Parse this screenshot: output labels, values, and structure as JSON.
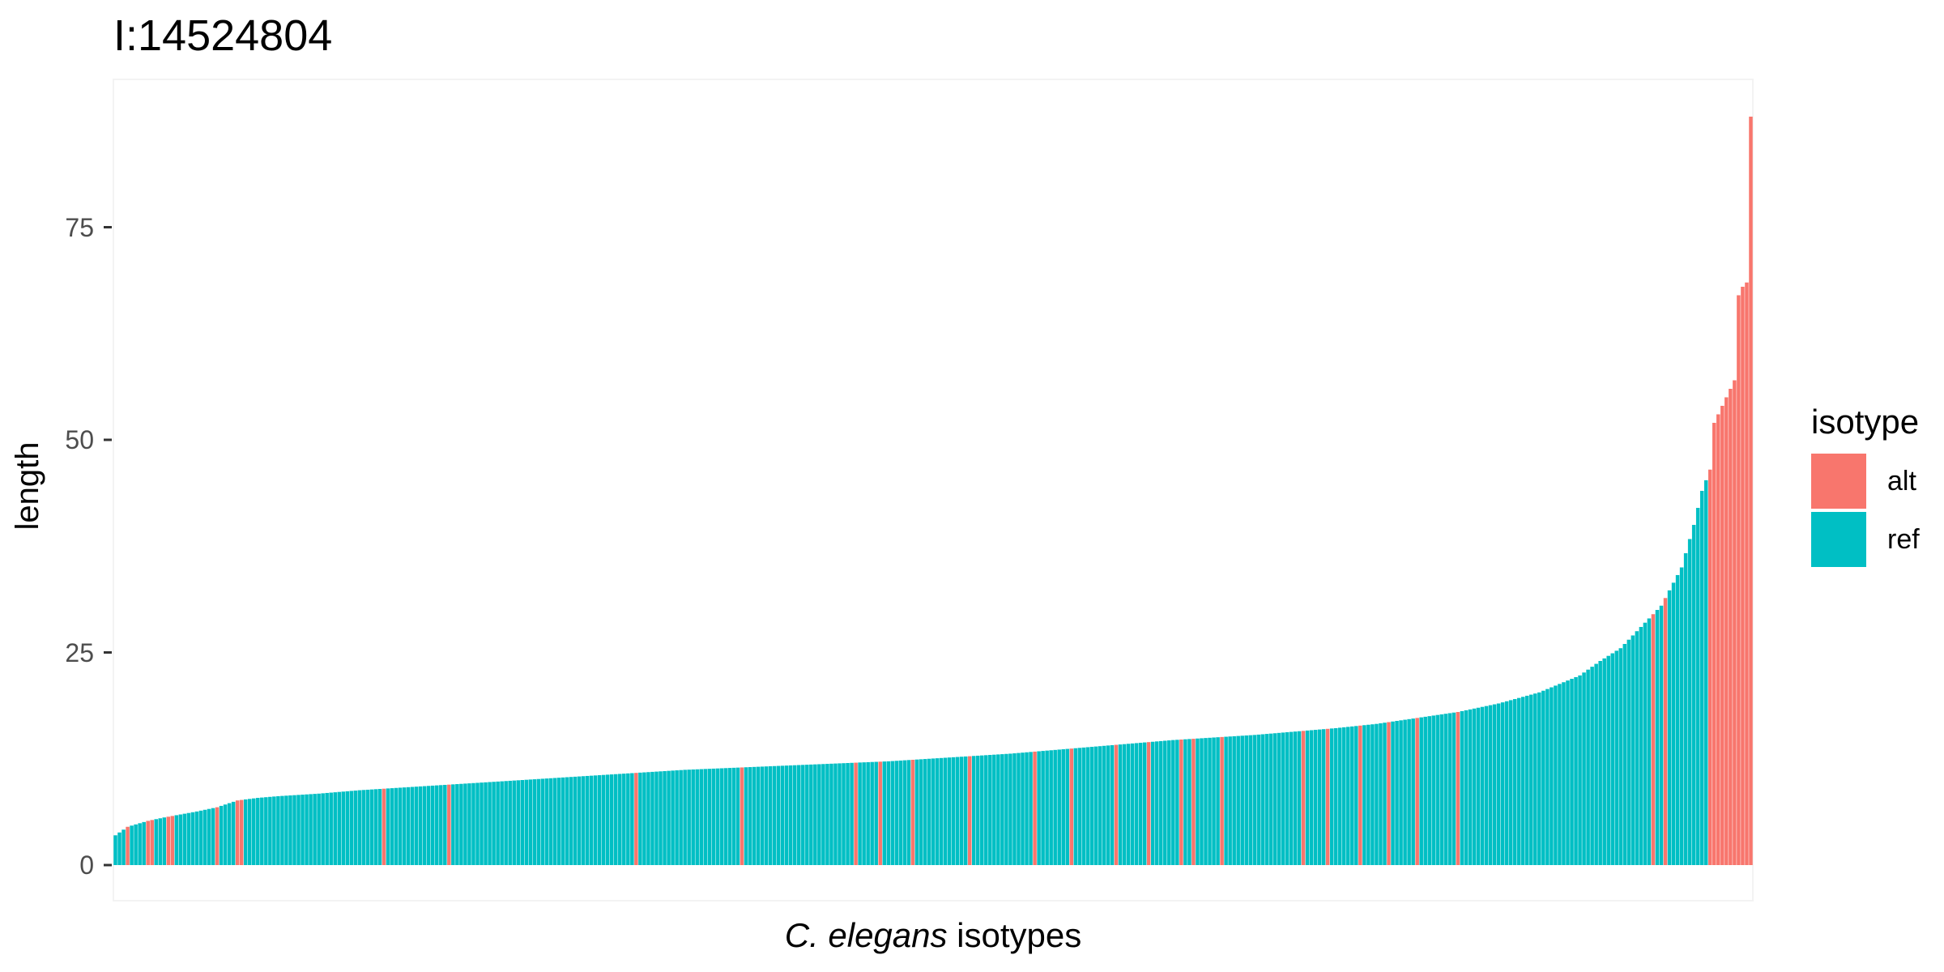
{
  "chart_data": {
    "type": "bar",
    "title": "I:14524804",
    "xlabel_italic": "C. elegans",
    "xlabel_rest": " isotypes",
    "ylabel": "length",
    "ylim": [
      0,
      90
    ],
    "yticks": [
      0,
      25,
      50,
      75
    ],
    "grid": false,
    "legend": {
      "title": "isotype",
      "position": "right",
      "entries": [
        {
          "label": "alt",
          "color": "#F8766D"
        },
        {
          "label": "ref",
          "color": "#00BFC4"
        }
      ]
    },
    "bar_count": 403,
    "profile": [
      [
        0,
        3.5
      ],
      [
        3,
        4.5
      ],
      [
        8,
        5.2
      ],
      [
        12,
        5.6
      ],
      [
        20,
        6.3
      ],
      [
        25,
        6.8
      ],
      [
        30,
        7.6
      ],
      [
        35,
        7.9
      ],
      [
        40,
        8.1
      ],
      [
        50,
        8.4
      ],
      [
        60,
        8.8
      ],
      [
        70,
        9.1
      ],
      [
        80,
        9.4
      ],
      [
        90,
        9.7
      ],
      [
        100,
        10.0
      ],
      [
        110,
        10.3
      ],
      [
        120,
        10.6
      ],
      [
        130,
        10.9
      ],
      [
        140,
        11.2
      ],
      [
        150,
        11.4
      ],
      [
        160,
        11.6
      ],
      [
        170,
        11.8
      ],
      [
        180,
        12.0
      ],
      [
        190,
        12.2
      ],
      [
        200,
        12.5
      ],
      [
        210,
        12.8
      ],
      [
        220,
        13.1
      ],
      [
        230,
        13.5
      ],
      [
        240,
        13.9
      ],
      [
        250,
        14.3
      ],
      [
        260,
        14.7
      ],
      [
        270,
        15.0
      ],
      [
        280,
        15.3
      ],
      [
        290,
        15.7
      ],
      [
        300,
        16.1
      ],
      [
        310,
        16.6
      ],
      [
        320,
        17.3
      ],
      [
        330,
        18.0
      ],
      [
        340,
        19.0
      ],
      [
        350,
        20.3
      ],
      [
        355,
        21.3
      ],
      [
        360,
        22.3
      ],
      [
        365,
        24.0
      ],
      [
        370,
        25.5
      ],
      [
        375,
        28.0
      ],
      [
        380,
        30.5
      ],
      [
        385,
        35.0
      ],
      [
        388,
        40.0
      ],
      [
        390,
        44.0
      ],
      [
        392,
        46.5
      ],
      [
        393,
        52.0
      ],
      [
        395,
        54.0
      ],
      [
        397,
        56.0
      ],
      [
        398,
        57.0
      ],
      [
        399,
        67.0
      ],
      [
        400,
        68.0
      ],
      [
        401,
        68.5
      ],
      [
        402,
        88.0
      ]
    ],
    "alt_indices": [
      3,
      8,
      9,
      13,
      14,
      25,
      30,
      31,
      66,
      82,
      128,
      154,
      182,
      188,
      196,
      210,
      226,
      235,
      246,
      254,
      262,
      265,
      272,
      292,
      298,
      306,
      313,
      320,
      330,
      378,
      381,
      392,
      393,
      394,
      395,
      396,
      397,
      398,
      399,
      400,
      401,
      402
    ]
  }
}
